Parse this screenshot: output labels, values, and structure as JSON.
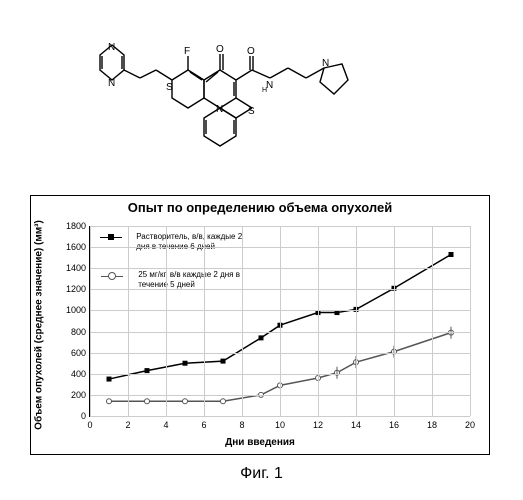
{
  "molecule": {
    "atom_labels": [
      "N",
      "N",
      "S",
      "N",
      "S",
      "F",
      "O",
      "O",
      "N",
      "N"
    ]
  },
  "chart": {
    "type": "line",
    "title": "Опыт по определению объема опухолей",
    "ylabel": "Объем опухолей (среднее значение) (мм³)",
    "xlabel": "Дни введения",
    "xlim": [
      0,
      20
    ],
    "ylim": [
      0,
      1800
    ],
    "xtick_step": 2,
    "ytick_step": 200,
    "xticks": [
      0,
      2,
      4,
      6,
      8,
      10,
      12,
      14,
      16,
      18,
      20
    ],
    "yticks": [
      0,
      200,
      400,
      600,
      800,
      1000,
      1200,
      1400,
      1600,
      1800
    ],
    "grid_color": "#cccccc",
    "background_color": "#ffffff",
    "series": [
      {
        "label": "Растворитель, в/в, каждые 2 дня в течение 6 дней",
        "marker": "square",
        "color": "#000000",
        "x": [
          1,
          3,
          5,
          7,
          9,
          10,
          12,
          13,
          14,
          16,
          19
        ],
        "y": [
          350,
          430,
          500,
          520,
          740,
          860,
          980,
          980,
          1010,
          1210,
          1530
        ]
      },
      {
        "label": "25 мг/кг, в/в каждые 2 дня в течение 5 дней",
        "marker": "circle",
        "color": "#555555",
        "x": [
          1,
          3,
          5,
          7,
          9,
          10,
          12,
          13,
          14,
          16,
          19
        ],
        "y": [
          140,
          140,
          140,
          140,
          200,
          290,
          360,
          410,
          510,
          610,
          790
        ]
      }
    ],
    "title_fontsize": 13,
    "label_fontsize": 10,
    "tick_fontsize": 9,
    "legend_fontsize": 8,
    "line_width": 1.5,
    "marker_size": 5
  },
  "caption": "Фиг. 1"
}
